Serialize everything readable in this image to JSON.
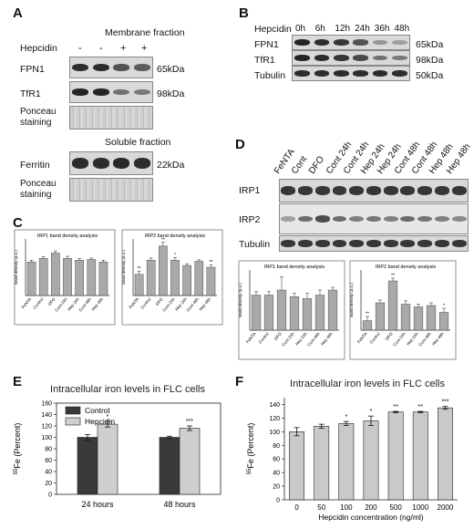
{
  "panelA": {
    "label": "A",
    "membrane_title": "Membrane fraction",
    "hepcidin_label": "Hepcidin",
    "treatments": [
      "-",
      "-",
      "+",
      "+"
    ],
    "rows": [
      {
        "name": "FPN1",
        "size": "65kDa",
        "intensity": [
          0.9,
          0.9,
          0.7,
          0.65
        ]
      },
      {
        "name": "TfR1",
        "size": "98kDa",
        "intensity": [
          0.95,
          0.95,
          0.55,
          0.5
        ]
      },
      {
        "name": "Ponceau staining",
        "size": ""
      }
    ],
    "soluble_title": "Soluble fraction",
    "soluble_rows": [
      {
        "name": "Ferritin",
        "size": "22kDa",
        "intensity": [
          0.9,
          0.9,
          0.92,
          0.9
        ]
      },
      {
        "name": "Ponceau staining",
        "size": ""
      }
    ]
  },
  "panelB": {
    "label": "B",
    "hepcidin_label": "Hepcidin",
    "timepoints": [
      "0h",
      "6h",
      "12h",
      "24h",
      "36h",
      "48h"
    ],
    "rows": [
      {
        "name": "FPN1",
        "size": "65kDa",
        "intensity": [
          0.95,
          0.9,
          0.85,
          0.7,
          0.35,
          0.3
        ]
      },
      {
        "name": "TfR1",
        "size": "98kDa",
        "intensity": [
          0.95,
          0.9,
          0.85,
          0.75,
          0.55,
          0.5
        ]
      },
      {
        "name": "Tubulin",
        "size": "50kDa",
        "intensity": [
          0.9,
          0.9,
          0.9,
          0.9,
          0.9,
          0.9
        ]
      }
    ]
  },
  "panelD": {
    "label": "D",
    "lanes": [
      "FeNTA",
      "Cont",
      "DFO",
      "Cont 24h",
      "Cont 24h",
      "Hep 24h",
      "Hep 24h",
      "Cont 48h",
      "Cont 48h",
      "Hep 48h",
      "Hep 48h"
    ],
    "rows": [
      "IRP1",
      "IRP2",
      "Tubulin"
    ]
  },
  "panelC": {
    "label": "C",
    "chart_data": [
      {
        "type": "bar",
        "title": "IRP1 band density analysis",
        "ylabel": "Band density (a.u.)",
        "categories": [
          "FeNTA",
          "Control",
          "DFO",
          "Cont 24h",
          "Hep 24h",
          "Cont 48h",
          "Hep 48h"
        ],
        "values": [
          0.95,
          1.05,
          1.2,
          1.05,
          1.0,
          1.02,
          0.95
        ],
        "errors": [
          0.05,
          0.05,
          0.06,
          0.06,
          0.05,
          0.04,
          0.05
        ],
        "ylim": [
          0,
          1.6
        ]
      },
      {
        "type": "bar",
        "title": "IRP2 band density analysis",
        "ylabel": "Band density (a.u.)",
        "categories": [
          "FeNTA",
          "Control",
          "DFO",
          "Cont 24h",
          "Hep 24h",
          "Cont 48h",
          "Hep 48h"
        ],
        "values": [
          0.6,
          1.0,
          1.4,
          1.0,
          0.85,
          0.97,
          0.8
        ],
        "errors": [
          0.08,
          0.06,
          0.1,
          0.07,
          0.05,
          0.04,
          0.06
        ],
        "annotations": [
          "**",
          "",
          "**",
          "*",
          "",
          "",
          "**"
        ],
        "ylim": [
          0,
          1.6
        ]
      }
    ]
  },
  "panelD_charts": {
    "chart_data": [
      {
        "type": "bar",
        "title": "IRP1 band density analysis",
        "ylabel": "Band density (a.u.)",
        "categories": [
          "FeNTA",
          "Control",
          "DFO",
          "Cont 24h",
          "Hep 24h",
          "Cont 48h",
          "Hep 48h"
        ],
        "values": [
          1.05,
          1.05,
          1.2,
          1.0,
          0.95,
          1.05,
          1.2
        ],
        "errors": [
          0.1,
          0.1,
          0.4,
          0.1,
          0.15,
          0.15,
          0.08
        ],
        "ylim": [
          0,
          1.8
        ]
      },
      {
        "type": "bar",
        "title": "IRP2 band density analysis",
        "ylabel": "Band density (a.u.)",
        "categories": [
          "FeNTA",
          "Control",
          "DFO",
          "Cont 24h",
          "Hep 24h",
          "Cont 48h",
          "Hep 48h"
        ],
        "values": [
          0.35,
          1.0,
          1.8,
          0.95,
          0.85,
          0.9,
          0.65
        ],
        "errors": [
          0.15,
          0.1,
          0.1,
          0.12,
          0.1,
          0.1,
          0.15
        ],
        "annotations": [
          "**",
          "",
          "**",
          "",
          "",
          "",
          "*"
        ],
        "ylim": [
          0,
          2.2
        ]
      }
    ]
  },
  "panelE": {
    "label": "E",
    "chart_data": {
      "type": "bar",
      "title": "Intracellular iron levels in FLC cells",
      "ylabel_sup": "55",
      "ylabel_rest": "Fe (Percent)",
      "categories": [
        "24 hours",
        "48 hours"
      ],
      "series": [
        {
          "name": "Control",
          "values": [
            100,
            100
          ],
          "errors": [
            5,
            2
          ],
          "color": "#3a3a3a"
        },
        {
          "name": "Hepcidin",
          "values": [
            123,
            116
          ],
          "errors": [
            5,
            4
          ],
          "color": "#cfcfcf"
        }
      ],
      "annotations": [
        "*",
        "***"
      ],
      "ylim": [
        0,
        160
      ],
      "yticks": [
        "0",
        "20",
        "40",
        "60",
        "80",
        "100",
        "120",
        "140",
        "160"
      ]
    }
  },
  "panelF": {
    "label": "F",
    "chart_data": {
      "type": "bar",
      "title": "Intracellular iron levels in FLC cells",
      "ylabel_sup": "55",
      "ylabel_rest": "Fe (Percent)",
      "xlabel": "Hepcidin concentration (ng/ml)",
      "categories": [
        "0",
        "50",
        "100",
        "200",
        "500",
        "1000",
        "2000"
      ],
      "values": [
        100,
        108,
        112,
        116,
        129,
        129,
        135
      ],
      "errors": [
        6,
        3,
        3,
        7,
        1,
        1,
        2
      ],
      "annotations": [
        "",
        "",
        "*",
        "*",
        "**",
        "**",
        "***"
      ],
      "ylim": [
        0,
        150
      ],
      "yticks": [
        "0",
        "20",
        "40",
        "60",
        "80",
        "100",
        "120",
        "140"
      ]
    }
  }
}
